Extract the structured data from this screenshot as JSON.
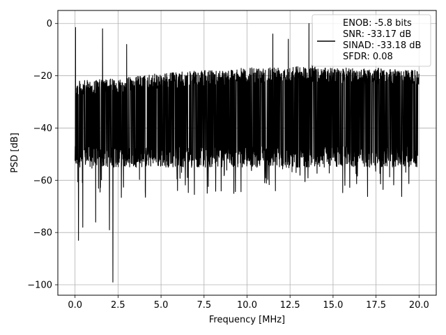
{
  "chart_data": {
    "type": "line",
    "title": "",
    "xlabel": "Frequency [MHz]",
    "ylabel": "PSD [dB]",
    "xlim": [
      -1.0,
      21.0
    ],
    "ylim": [
      -104,
      5
    ],
    "x_ticks": [
      0.0,
      2.5,
      5.0,
      7.5,
      10.0,
      12.5,
      15.0,
      17.5,
      20.0
    ],
    "x_tick_labels": [
      "0.0",
      "2.5",
      "5.0",
      "7.5",
      "10.0",
      "12.5",
      "15.0",
      "17.5",
      "20.0"
    ],
    "y_ticks": [
      0,
      -20,
      -40,
      -60,
      -80,
      -100
    ],
    "y_tick_labels": [
      "0",
      "−20",
      "−40",
      "−60",
      "−80",
      "−100"
    ],
    "grid": true,
    "legend": {
      "placement": "top-right",
      "entries": [
        "ENOB: -5.8 bits",
        "SNR: -33.17 dB",
        "SINAD: -33.18 dB",
        "SFDR: 0.08"
      ]
    },
    "series": [
      {
        "color": "#000000",
        "x_range": [
          0.0,
          20.0
        ],
        "noise_floor_mean": -38,
        "noise_band": [
          -55,
          -22
        ],
        "upper_envelope": [
          {
            "x": 0.0,
            "y": -22
          },
          {
            "x": 2.5,
            "y": -21
          },
          {
            "x": 5.0,
            "y": -19
          },
          {
            "x": 7.5,
            "y": -18
          },
          {
            "x": 10.0,
            "y": -17
          },
          {
            "x": 12.5,
            "y": -16
          },
          {
            "x": 15.0,
            "y": -17
          },
          {
            "x": 17.5,
            "y": -17
          },
          {
            "x": 20.0,
            "y": -18
          }
        ],
        "spurs": [
          {
            "x": 0.03,
            "y": -1.5
          },
          {
            "x": 1.6,
            "y": -2
          },
          {
            "x": 2.2,
            "y": -99
          },
          {
            "x": 3.0,
            "y": -8
          },
          {
            "x": 11.5,
            "y": -4
          },
          {
            "x": 12.4,
            "y": -6
          },
          {
            "x": 13.6,
            "y": 0
          },
          {
            "x": 13.8,
            "y": 0
          },
          {
            "x": 0.2,
            "y": -83
          },
          {
            "x": 0.45,
            "y": -78
          },
          {
            "x": 1.2,
            "y": -76
          },
          {
            "x": 2.0,
            "y": -79
          }
        ]
      }
    ]
  }
}
